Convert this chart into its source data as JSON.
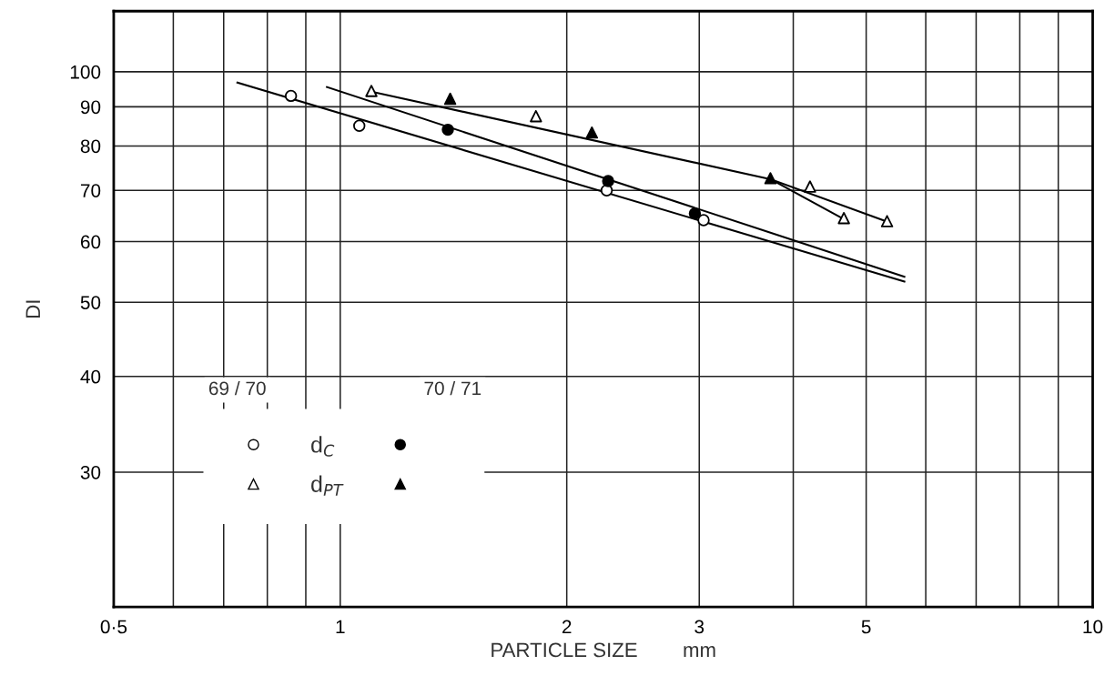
{
  "chart_data": {
    "type": "scatter",
    "xlabel": "PARTICLE SIZE        mm",
    "ylabel": "DI",
    "log": "xy",
    "grid": true,
    "legend": "bottom left",
    "xlim": [
      0.5,
      10
    ],
    "ylim": [
      20,
      120
    ],
    "xticks": [
      {
        "value": 0.5,
        "label": "0·5"
      },
      {
        "value": 0.6,
        "label": null
      },
      {
        "value": 0.7,
        "label": null
      },
      {
        "value": 0.8,
        "label": null
      },
      {
        "value": 0.9,
        "label": null
      },
      1,
      2,
      3,
      {
        "value": 4,
        "label": null
      },
      5,
      {
        "value": 6,
        "label": null
      },
      {
        "value": 7,
        "label": null
      },
      {
        "value": 8,
        "label": null
      },
      {
        "value": 9,
        "label": null
      },
      10
    ],
    "yticks": [
      30,
      40,
      50,
      60,
      70,
      80,
      90,
      100
    ],
    "annotations": [
      "69 / 70",
      "70 / 71"
    ],
    "series": [
      {
        "name": "d$_{C}$",
        "color": "#ffffff",
        "marker": "circle",
        "x": [
          0.86,
          1.06,
          2.26,
          3.04
        ],
        "values": [
          93,
          85,
          70,
          64
        ]
      },
      {
        "color": "#000000",
        "marker": "circle",
        "x": [
          1.39,
          2.27,
          2.96
        ],
        "values": [
          84,
          72,
          65.3
        ]
      },
      {
        "name": "d$_{PT}$",
        "color": "#ffffff",
        "marker": "triangle",
        "x": [
          1.1,
          1.82,
          4.21,
          4.67,
          5.33
        ],
        "values": [
          94.4,
          87.5,
          70.8,
          64.4,
          63.8
        ]
      },
      {
        "color": "#000000",
        "marker": "triangle",
        "x": [
          1.4,
          2.16,
          3.73
        ],
        "values": [
          92.2,
          83.3,
          72.6
        ]
      },
      {
        "type": "line",
        "color": "#000000",
        "x": [
          0.73,
          5.62
        ],
        "values": [
          96.8,
          53.2
        ]
      },
      {
        "type": "line",
        "color": "#000000",
        "x": [
          0.96,
          5.62
        ],
        "values": [
          95.5,
          54.0
        ]
      },
      {
        "type": "line",
        "color": "#000000",
        "x": [
          1.1,
          3.73,
          4.67
        ],
        "values": [
          94.2,
          72.4,
          64.2
        ]
      },
      {
        "type": "line",
        "color": "#000000",
        "x": [
          3.73,
          5.33
        ],
        "values": [
          72.4,
          63.7
        ]
      }
    ]
  }
}
